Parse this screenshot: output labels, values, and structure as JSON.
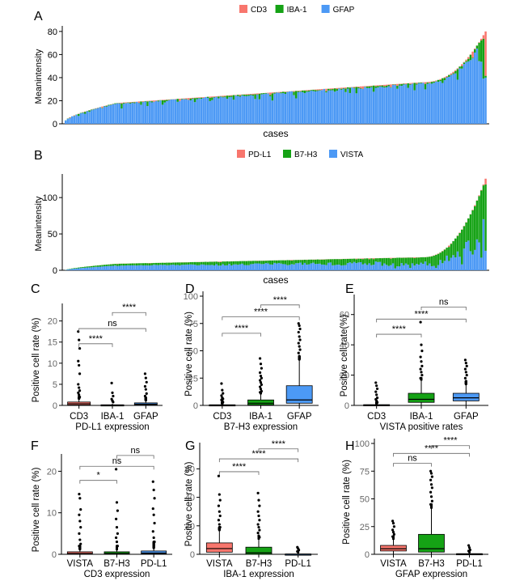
{
  "colors": {
    "cd3": "#F8766D",
    "iba1": "#15A215",
    "gfap": "#4C99F5",
    "pdl1": "#F8766D",
    "b7h3": "#15A215",
    "vista": "#4C99F5",
    "whisker": "#000000"
  },
  "chart_data": [
    {
      "panel": "A",
      "type": "bar",
      "stacked": true,
      "legend": [
        {
          "label": "CD3",
          "color": "#F8766D"
        },
        {
          "label": "IBA-1",
          "color": "#15A215"
        },
        {
          "label": "GFAP",
          "color": "#4C99F5"
        }
      ],
      "xlabel": "cases",
      "ylabel": "Meanintensity",
      "ylim": [
        0,
        82
      ],
      "yticks": [
        0,
        20,
        40,
        60,
        80
      ],
      "n_cases": 196,
      "sorted_by": "total intensity",
      "total_min": 3,
      "total_knee": 36,
      "total_max": 80,
      "approx_share": {
        "CD3": 0.03,
        "IBA-1": 0.06,
        "GFAP": 0.91
      }
    },
    {
      "panel": "B",
      "type": "bar",
      "stacked": true,
      "legend": [
        {
          "label": "PD-L1",
          "color": "#F8766D"
        },
        {
          "label": "B7-H3",
          "color": "#15A215"
        },
        {
          "label": "VISTA",
          "color": "#4C99F5"
        }
      ],
      "xlabel": "cases",
      "ylabel": "Meanintensity",
      "ylim": [
        0,
        128
      ],
      "yticks": [
        0,
        50,
        100
      ],
      "n_cases": 196,
      "sorted_by": "total intensity",
      "total_min": 0.5,
      "total_knee": 18,
      "total_max": 126,
      "approx_share": {
        "PD-L1": 0.04,
        "B7-H3": 0.36,
        "VISTA": 0.6
      }
    },
    {
      "panel": "C",
      "type": "box",
      "title": "",
      "xlabel": "PD-L1 expression",
      "ylabel": "Positive cell rate (%)",
      "ylim": [
        0,
        23
      ],
      "yticks": [
        0,
        5,
        10,
        15,
        20
      ],
      "categories": [
        "CD3",
        "IBA-1",
        "GFAP"
      ],
      "colors": [
        "#F8766D",
        "#15A215",
        "#4C99F5"
      ],
      "boxes": [
        {
          "q1": 0.1,
          "median": 0.4,
          "q3": 0.8,
          "lo": 0,
          "hi": 1.6,
          "outliers": [
            17.5,
            15.5,
            13.5,
            10.5,
            9.5,
            7.5,
            5.0,
            4.2,
            3.5,
            3.0,
            2.5,
            2.0
          ]
        },
        {
          "q1": 0.0,
          "median": 0.05,
          "q3": 0.15,
          "lo": 0,
          "hi": 0.4,
          "outliers": [
            5.3,
            3.0,
            2.2,
            1.5,
            1.1,
            0.8
          ]
        },
        {
          "q1": 0.1,
          "median": 0.3,
          "q3": 0.6,
          "lo": 0,
          "hi": 1.2,
          "outliers": [
            7.5,
            6.5,
            5.5,
            4.5,
            3.8,
            2.8,
            2.2,
            1.8
          ]
        }
      ],
      "comparisons": [
        {
          "from": 0,
          "to": 2,
          "label": "ns",
          "y": 18.2
        },
        {
          "from": 1,
          "to": 2,
          "label": "****",
          "y": 22.0
        },
        {
          "from": 0,
          "to": 1,
          "label": "****",
          "y": 14.6
        }
      ]
    },
    {
      "panel": "D",
      "type": "box",
      "title": "",
      "xlabel": "B7-H3 expression",
      "ylabel": "Positive cell rate (%)",
      "ylim": [
        0,
        100
      ],
      "yticks": [
        0,
        25,
        50,
        75,
        100
      ],
      "categories": [
        "CD3",
        "IBA-1",
        "GFAP"
      ],
      "colors": [
        "#F8766D",
        "#15A215",
        "#4C99F5"
      ],
      "boxes": [
        {
          "q1": 0,
          "median": 0.2,
          "q3": 0.6,
          "lo": 0,
          "hi": 1.5,
          "outliers": [
            20,
            14,
            11,
            9,
            7,
            6,
            5,
            4,
            3
          ]
        },
        {
          "q1": 0.5,
          "median": 2,
          "q3": 5,
          "lo": 0,
          "hi": 11,
          "outliers": [
            43,
            38,
            34,
            30,
            27,
            25,
            23,
            21,
            19,
            17,
            15,
            13,
            12
          ]
        },
        {
          "q1": 2,
          "median": 5,
          "q3": 18,
          "lo": 0,
          "hi": 42,
          "outliers": [
            75,
            73,
            70,
            67,
            63,
            60,
            57,
            54,
            51,
            48,
            45
          ]
        }
      ],
      "comparisons": [
        {
          "from": 0,
          "to": 1,
          "label": "****",
          "y": 66
        },
        {
          "from": 0,
          "to": 2,
          "label": "****",
          "y": 81
        },
        {
          "from": 1,
          "to": 2,
          "label": "****",
          "y": 92
        }
      ]
    },
    {
      "panel": "E",
      "type": "box",
      "title": "",
      "xlabel": "VISTA positive rates",
      "ylabel": "Positive cell rate(%)",
      "ylim": [
        0,
        70
      ],
      "yticks": [
        0,
        20,
        40,
        60
      ],
      "categories": [
        "CD3",
        "IBA-1",
        "GFAP"
      ],
      "colors": [
        "#F8766D",
        "#15A215",
        "#4C99F5"
      ],
      "boxes": [
        {
          "q1": 0,
          "median": 0.1,
          "q3": 0.5,
          "lo": 0,
          "hi": 1.2,
          "outliers": [
            15,
            13,
            11,
            9,
            7,
            5,
            4,
            3,
            2
          ]
        },
        {
          "q1": 2,
          "median": 4,
          "q3": 8,
          "lo": 0,
          "hi": 17,
          "outliers": [
            55,
            40,
            36,
            32,
            29,
            26,
            24,
            22,
            20,
            18
          ]
        },
        {
          "q1": 3,
          "median": 5,
          "q3": 8,
          "lo": 0,
          "hi": 14,
          "outliers": [
            30,
            28,
            26,
            24,
            22,
            20,
            18,
            16
          ]
        }
      ],
      "comparisons": [
        {
          "from": 0,
          "to": 1,
          "label": "****",
          "y": 47
        },
        {
          "from": 0,
          "to": 2,
          "label": "****",
          "y": 57
        },
        {
          "from": 1,
          "to": 2,
          "label": "ns",
          "y": 65
        }
      ]
    },
    {
      "panel": "F",
      "type": "box",
      "title": "",
      "xlabel": "CD3 expression",
      "ylabel": "Positive cell rate (%)",
      "ylim": [
        0,
        23
      ],
      "yticks": [
        0,
        10,
        20
      ],
      "categories": [
        "VISTA",
        "B7-H3",
        "PD-L1"
      ],
      "colors": [
        "#F8766D",
        "#15A215",
        "#4C99F5"
      ],
      "boxes": [
        {
          "q1": 0,
          "median": 0.2,
          "q3": 0.6,
          "lo": 0,
          "hi": 1.2,
          "outliers": [
            14.5,
            13.5,
            10.8,
            9.5,
            8.0,
            6.5,
            5.0,
            3.5,
            2.5,
            2.0
          ]
        },
        {
          "q1": 0,
          "median": 0.2,
          "q3": 0.6,
          "lo": 0,
          "hi": 1.2,
          "outliers": [
            20.5,
            12.5,
            10.5,
            8.5,
            6.5,
            5.0,
            4.0,
            3.0,
            2.0
          ]
        },
        {
          "q1": 0.1,
          "median": 0.3,
          "q3": 0.8,
          "lo": 0,
          "hi": 1.5,
          "outliers": [
            17.5,
            15.5,
            13.5,
            11.0,
            9.5,
            7.5,
            5.5,
            4.0,
            3.0
          ]
        }
      ],
      "comparisons": [
        {
          "from": 0,
          "to": 1,
          "label": "*",
          "y": 17.8
        },
        {
          "from": 0,
          "to": 2,
          "label": "ns",
          "y": 21.2
        },
        {
          "from": 1,
          "to": 2,
          "label": "ns",
          "y": 23.8
        }
      ]
    },
    {
      "panel": "G",
      "type": "box",
      "title": "",
      "xlabel": "IBA-1 expression",
      "ylabel": "Positive cell rate (%)",
      "ylim": [
        0,
        75
      ],
      "yticks": [
        0,
        20,
        40,
        60
      ],
      "categories": [
        "VISTA",
        "B7-H3",
        "PD-L1"
      ],
      "colors": [
        "#F8766D",
        "#15A215",
        "#4C99F5"
      ],
      "boxes": [
        {
          "q1": 1.5,
          "median": 4,
          "q3": 8,
          "lo": 0,
          "hi": 17,
          "outliers": [
            55,
            42,
            38,
            34,
            30,
            27,
            24,
            21,
            19
          ]
        },
        {
          "q1": 0,
          "median": 1,
          "q3": 5,
          "lo": 0,
          "hi": 11,
          "outliers": [
            43,
            38,
            34,
            30,
            27,
            24,
            21,
            19,
            17,
            15,
            13,
            12
          ]
        },
        {
          "q1": 0,
          "median": 0.05,
          "q3": 0.2,
          "lo": 0,
          "hi": 0.5,
          "outliers": [
            5,
            4,
            3,
            2,
            1.5
          ]
        }
      ],
      "comparisons": [
        {
          "from": 0,
          "to": 1,
          "label": "****",
          "y": 58
        },
        {
          "from": 0,
          "to": 2,
          "label": "****",
          "y": 67
        },
        {
          "from": 1,
          "to": 2,
          "label": "****",
          "y": 74
        }
      ]
    },
    {
      "panel": "H",
      "type": "box",
      "title": "",
      "xlabel": "GFAP expression",
      "ylabel": "Positive cell rate (%)",
      "ylim": [
        0,
        100
      ],
      "yticks": [
        0,
        25,
        50,
        75,
        100
      ],
      "categories": [
        "VISTA",
        "B7-H3",
        "PD-L1"
      ],
      "colors": [
        "#F8766D",
        "#15A215",
        "#4C99F5"
      ],
      "boxes": [
        {
          "q1": 3,
          "median": 5,
          "q3": 8,
          "lo": 0,
          "hi": 14,
          "outliers": [
            30,
            28,
            25,
            22,
            20,
            18,
            16
          ]
        },
        {
          "q1": 2,
          "median": 5,
          "q3": 18,
          "lo": 0,
          "hi": 42,
          "outliers": [
            75,
            73,
            70,
            67,
            63,
            60,
            56,
            52,
            48,
            45
          ]
        },
        {
          "q1": 0,
          "median": 0.2,
          "q3": 0.6,
          "lo": 0,
          "hi": 1.5,
          "outliers": [
            8,
            6,
            4,
            3,
            2
          ]
        }
      ],
      "comparisons": [
        {
          "from": 0,
          "to": 1,
          "label": "ns",
          "y": 82
        },
        {
          "from": 0,
          "to": 2,
          "label": "****",
          "y": 91
        },
        {
          "from": 1,
          "to": 2,
          "label": "****",
          "y": 98
        }
      ]
    }
  ]
}
